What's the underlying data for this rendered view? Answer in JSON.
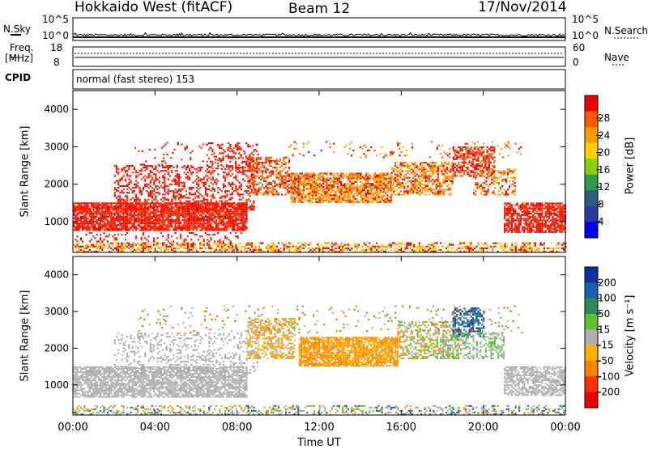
{
  "header": {
    "title": "Hokkaido West (fitACF)",
    "beam": "Beam 12",
    "date": "17/Nov/2014"
  },
  "top_panels": {
    "nsky_label": "N.Sky",
    "nsearch_label": "N.Search",
    "noise_ticks_left": [
      "10^5",
      "10^0"
    ],
    "noise_ticks_right": [
      "10^5",
      "10^0"
    ],
    "freq_label": "Freq.",
    "freq_unit": "[MHz]",
    "freq_ticks": [
      "18",
      "8"
    ],
    "nave_label": "Nave",
    "nave_ticks": [
      "60",
      "0"
    ],
    "cpid_label": "CPID",
    "cpid_text": "normal (fast stereo) 153"
  },
  "chart_data": [
    {
      "type": "heatmap",
      "name": "power",
      "ylabel": "Slant Range [km]",
      "y_ticks": [
        "4000",
        "3000",
        "2000",
        "1000"
      ],
      "ylim": [
        180,
        4500
      ],
      "colorbar_label": "Power [dB]",
      "colorbar_ticks": [
        "28",
        "24",
        "20",
        "16",
        "12",
        "8",
        "4"
      ],
      "colorbar_colors": [
        "#ee0000",
        "#ff5a00",
        "#ff9a00",
        "#ffd000",
        "#8dd000",
        "#2d9b4b",
        "#2a5e7e",
        "#2a3a9e",
        "#0000ee"
      ]
    },
    {
      "type": "heatmap",
      "name": "velocity",
      "ylabel": "Slant Range [km]",
      "y_ticks": [
        "4000",
        "3000",
        "2000",
        "1000"
      ],
      "ylim": [
        180,
        4500
      ],
      "colorbar_label": "Velocity [m s⁻¹]",
      "colorbar_ticks": [
        "200",
        "100",
        "50",
        "15",
        "-15",
        "-50",
        "-100",
        "-200"
      ],
      "colorbar_colors": [
        "#1030a0",
        "#1a5fb0",
        "#2a8a5a",
        "#5cc030",
        "#b0b0b0",
        "#ffb000",
        "#ff8000",
        "#ff3000",
        "#ee0000"
      ]
    }
  ],
  "x_axis": {
    "ticks": [
      "00:00",
      "04:00",
      "08:00",
      "12:00",
      "16:00",
      "20:00",
      "00:00"
    ],
    "label": "Time UT"
  }
}
